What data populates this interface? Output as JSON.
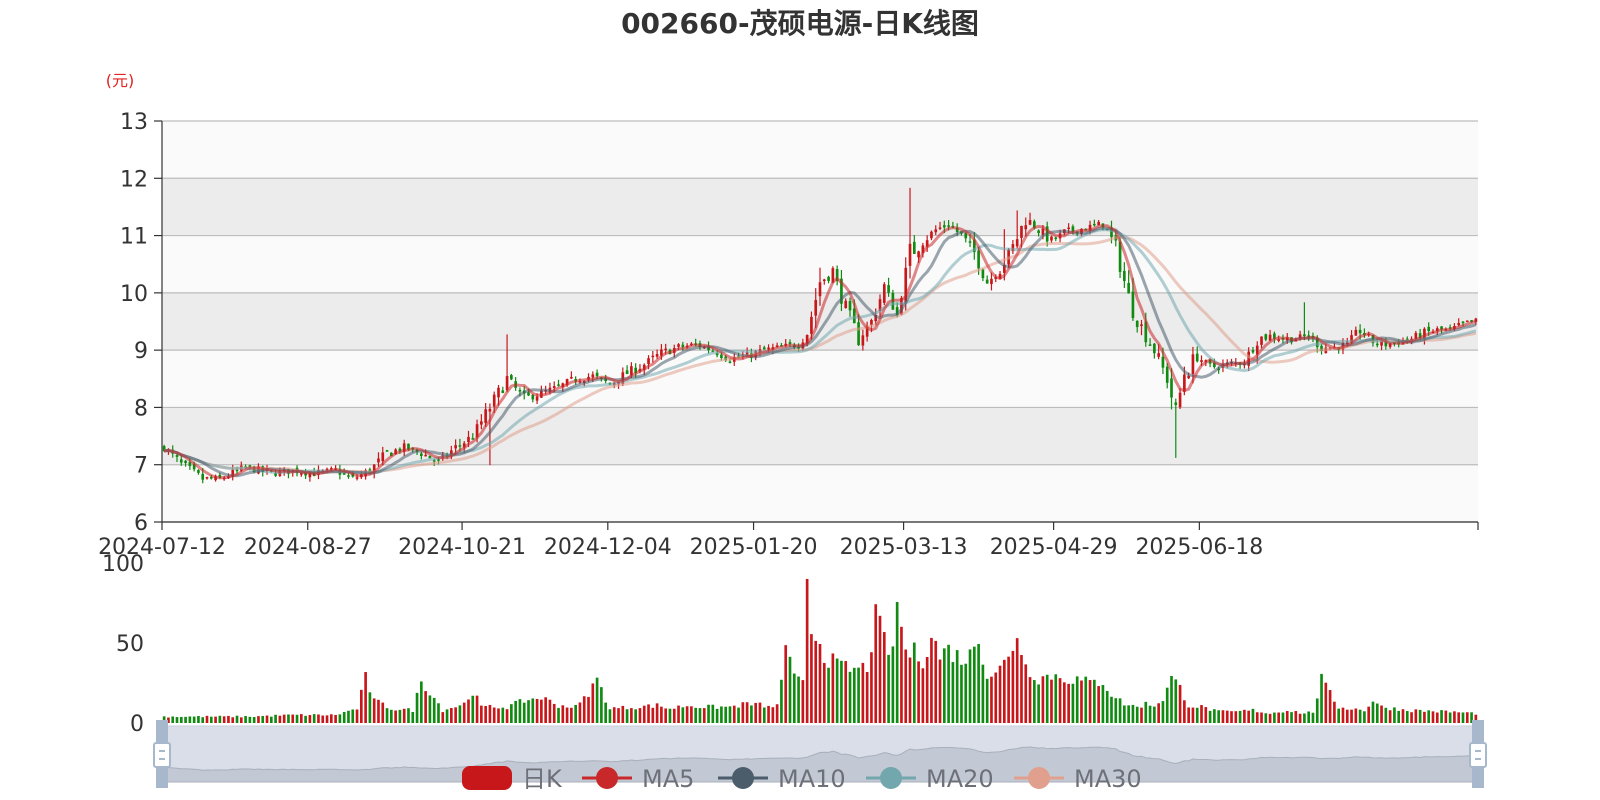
{
  "title": "002660-茂硕电源-日K线图",
  "chart_data": {
    "type": "candlestick",
    "title": "002660-茂硕电源-日K线图",
    "ylabel": "(元)",
    "ylim": [
      6,
      13
    ],
    "yticks": [
      "6",
      "7",
      "8",
      "9",
      "10",
      "11",
      "12",
      "13"
    ],
    "xticks": [
      "2024-07-12",
      "2024-08-27",
      "2024-10-21",
      "2024-12-04",
      "2025-01-20",
      "2025-03-13",
      "2025-04-29",
      "2025-06-18"
    ],
    "grid": true,
    "legend_position": "bottom",
    "legend": [
      "日K",
      "MA5",
      "MA10",
      "MA20",
      "MA30"
    ],
    "colors": {
      "up": "#c8171a",
      "down": "#118a11",
      "ma5": "#c8282a",
      "ma10": "#4b5c6b",
      "ma20": "#72a7ae",
      "ma30": "#e0a08d",
      "band": "#ececec",
      "grid": "#bdbdbd",
      "zoom_fill": "#d9dee8",
      "zoom_handle": "#a7b7cc"
    },
    "price_anchors": [
      [
        0,
        7.3
      ],
      [
        4,
        7.0
      ],
      [
        9,
        6.75
      ],
      [
        13,
        6.75
      ],
      [
        19,
        6.95
      ],
      [
        25,
        6.85
      ],
      [
        30,
        6.9
      ],
      [
        35,
        6.85
      ],
      [
        40,
        6.9
      ],
      [
        44,
        6.75
      ],
      [
        48,
        6.9
      ],
      [
        52,
        7.2
      ],
      [
        56,
        7.3
      ],
      [
        60,
        7.2
      ],
      [
        64,
        7.05
      ],
      [
        68,
        7.3
      ],
      [
        72,
        7.5
      ],
      [
        76,
        8.0
      ],
      [
        80,
        8.5
      ],
      [
        84,
        8.15
      ],
      [
        88,
        8.25
      ],
      [
        92,
        8.35
      ],
      [
        96,
        8.5
      ],
      [
        100,
        8.55
      ],
      [
        104,
        8.4
      ],
      [
        108,
        8.6
      ],
      [
        112,
        8.75
      ],
      [
        116,
        8.95
      ],
      [
        120,
        9.05
      ],
      [
        124,
        9.1
      ],
      [
        128,
        9.0
      ],
      [
        132,
        8.85
      ],
      [
        136,
        8.9
      ],
      [
        140,
        9.0
      ],
      [
        144,
        9.05
      ],
      [
        148,
        9.1
      ],
      [
        150,
        9.3
      ],
      [
        153,
        10.2
      ],
      [
        156,
        10.4
      ],
      [
        159,
        9.7
      ],
      [
        162,
        9.2
      ],
      [
        165,
        9.5
      ],
      [
        168,
        10.1
      ],
      [
        171,
        9.6
      ],
      [
        174,
        10.7
      ],
      [
        177,
        10.9
      ],
      [
        180,
        11.1
      ],
      [
        183,
        11.2
      ],
      [
        186,
        11.0
      ],
      [
        189,
        10.7
      ],
      [
        192,
        10.2
      ],
      [
        195,
        10.4
      ],
      [
        198,
        10.8
      ],
      [
        201,
        11.3
      ],
      [
        204,
        11.1
      ],
      [
        207,
        10.9
      ],
      [
        210,
        11.05
      ],
      [
        213,
        11.1
      ],
      [
        216,
        11.15
      ],
      [
        219,
        11.2
      ],
      [
        222,
        10.8
      ],
      [
        225,
        9.9
      ],
      [
        228,
        9.4
      ],
      [
        231,
        9.0
      ],
      [
        234,
        8.5
      ],
      [
        236,
        7.9
      ],
      [
        238,
        8.6
      ],
      [
        241,
        8.9
      ],
      [
        244,
        8.7
      ],
      [
        248,
        8.75
      ],
      [
        252,
        8.8
      ],
      [
        255,
        9.2
      ],
      [
        258,
        9.25
      ],
      [
        261,
        9.2
      ],
      [
        264,
        9.2
      ],
      [
        267,
        9.25
      ],
      [
        270,
        9.05
      ],
      [
        273,
        9.05
      ],
      [
        276,
        9.1
      ],
      [
        279,
        9.35
      ],
      [
        282,
        9.15
      ],
      [
        285,
        9.1
      ],
      [
        288,
        9.15
      ],
      [
        291,
        9.2
      ],
      [
        294,
        9.3
      ],
      [
        297,
        9.35
      ],
      [
        300,
        9.35
      ],
      [
        303,
        9.45
      ],
      [
        306,
        9.5
      ]
    ],
    "volume_anchors": [
      [
        0,
        4
      ],
      [
        10,
        4
      ],
      [
        20,
        4
      ],
      [
        30,
        5
      ],
      [
        40,
        5
      ],
      [
        45,
        9
      ],
      [
        47,
        28
      ],
      [
        49,
        14
      ],
      [
        53,
        9
      ],
      [
        58,
        8
      ],
      [
        60,
        26
      ],
      [
        62,
        20
      ],
      [
        65,
        8
      ],
      [
        70,
        12
      ],
      [
        72,
        20
      ],
      [
        74,
        10
      ],
      [
        80,
        10
      ],
      [
        84,
        14
      ],
      [
        88,
        16
      ],
      [
        92,
        11
      ],
      [
        96,
        10
      ],
      [
        98,
        15
      ],
      [
        101,
        27
      ],
      [
        104,
        9
      ],
      [
        110,
        10
      ],
      [
        115,
        11
      ],
      [
        118,
        9
      ],
      [
        122,
        11
      ],
      [
        126,
        10
      ],
      [
        132,
        10
      ],
      [
        136,
        12
      ],
      [
        140,
        11
      ],
      [
        142,
        9
      ],
      [
        143,
        12
      ],
      [
        145,
        45
      ],
      [
        147,
        28
      ],
      [
        149,
        24
      ],
      [
        150,
        95
      ],
      [
        151,
        57
      ],
      [
        152,
        58
      ],
      [
        154,
        43
      ],
      [
        156,
        38
      ],
      [
        158,
        35
      ],
      [
        161,
        33
      ],
      [
        164,
        35
      ],
      [
        166,
        65
      ],
      [
        168,
        52
      ],
      [
        170,
        42
      ],
      [
        171,
        77
      ],
      [
        173,
        44
      ],
      [
        175,
        44
      ],
      [
        177,
        40
      ],
      [
        179,
        55
      ],
      [
        181,
        42
      ],
      [
        183,
        46
      ],
      [
        186,
        40
      ],
      [
        188,
        42
      ],
      [
        190,
        55
      ],
      [
        192,
        30
      ],
      [
        195,
        34
      ],
      [
        197,
        40
      ],
      [
        199,
        57
      ],
      [
        201,
        35
      ],
      [
        204,
        28
      ],
      [
        207,
        30
      ],
      [
        210,
        28
      ],
      [
        213,
        27
      ],
      [
        216,
        25
      ],
      [
        219,
        26
      ],
      [
        221,
        18
      ],
      [
        224,
        12
      ],
      [
        227,
        10
      ],
      [
        229,
        12
      ],
      [
        231,
        11
      ],
      [
        233,
        15
      ],
      [
        235,
        28
      ],
      [
        237,
        22
      ],
      [
        239,
        11
      ],
      [
        242,
        10
      ],
      [
        246,
        7
      ],
      [
        250,
        7
      ],
      [
        254,
        8
      ],
      [
        258,
        6
      ],
      [
        262,
        8
      ],
      [
        266,
        6
      ],
      [
        268,
        7
      ],
      [
        270,
        27
      ],
      [
        272,
        18
      ],
      [
        274,
        10
      ],
      [
        280,
        8
      ],
      [
        282,
        14
      ],
      [
        284,
        10
      ],
      [
        290,
        8
      ],
      [
        300,
        7
      ],
      [
        306,
        6
      ]
    ],
    "volume_ylim": [
      0,
      100
    ],
    "volume_yticks": [
      "0",
      "50",
      "100"
    ]
  }
}
